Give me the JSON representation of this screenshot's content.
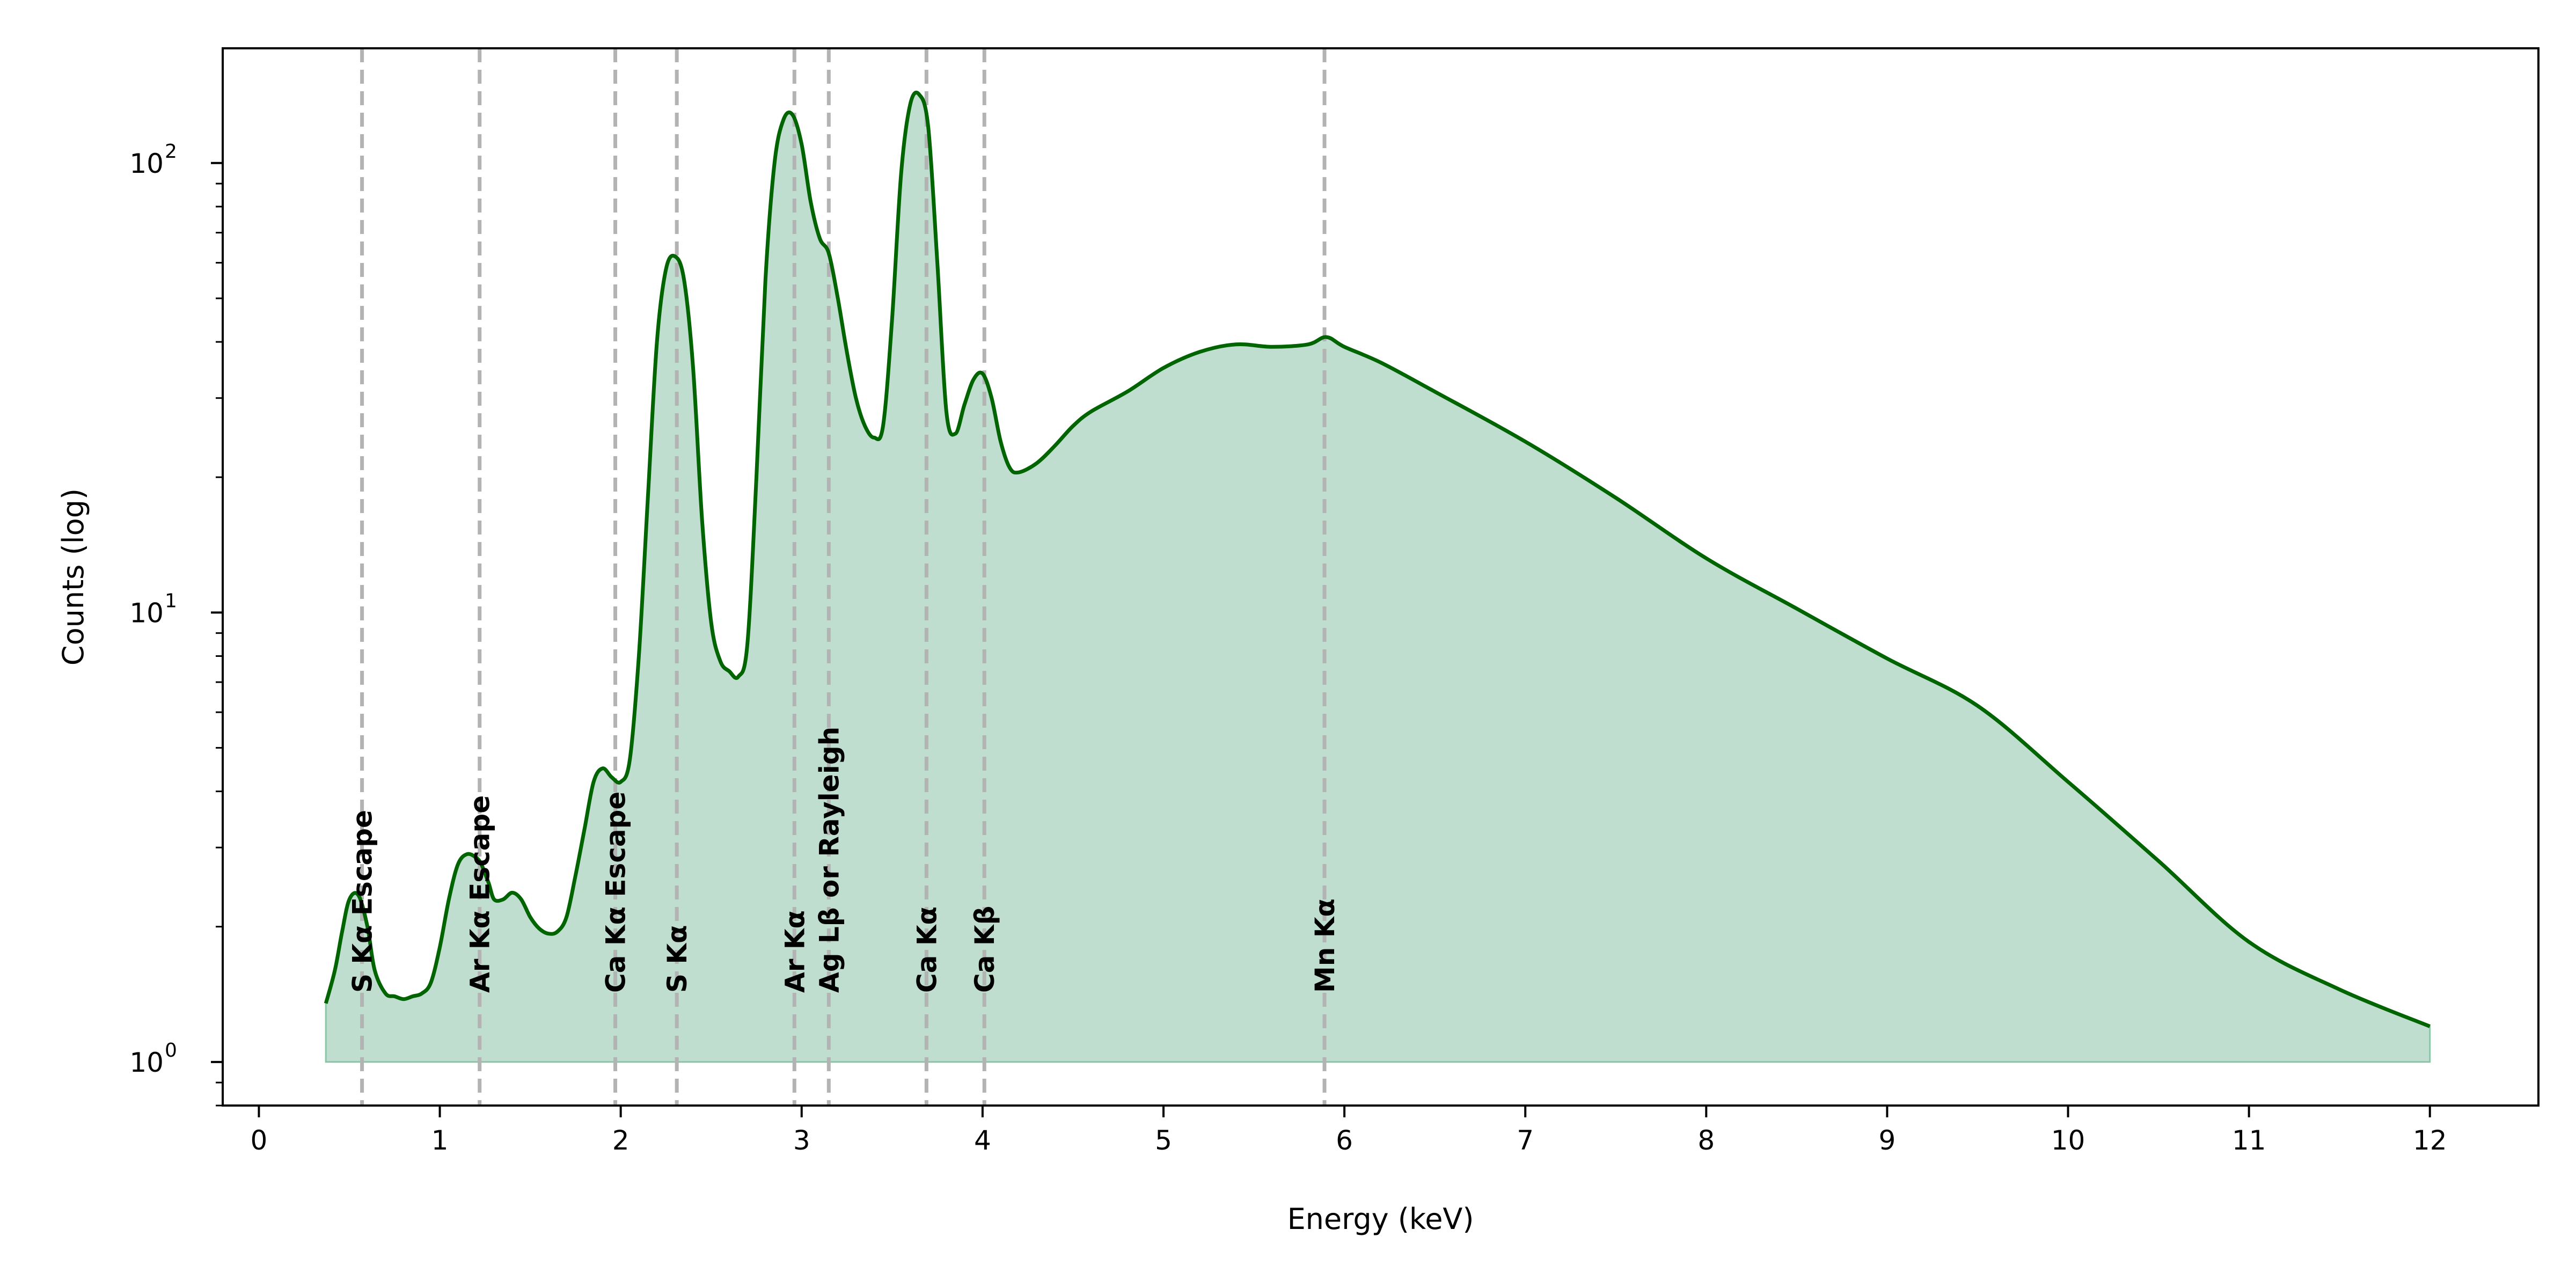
{
  "chart_data": {
    "type": "area",
    "title": "",
    "xlabel": "Energy (keV)",
    "ylabel": "Counts (log)",
    "xlim": [
      -0.2,
      12.6
    ],
    "ylim": [
      0.8,
      180
    ],
    "yscale": "log",
    "grid": false,
    "colors": {
      "line": "#006400",
      "fill": "#bfded0",
      "fill_edge": "#8cc4a8",
      "marker": "#b3b3b3"
    },
    "x_ticks": [
      {
        "value": 0,
        "label": "0"
      },
      {
        "value": 1,
        "label": "1"
      },
      {
        "value": 2,
        "label": "2"
      },
      {
        "value": 3,
        "label": "3"
      },
      {
        "value": 4,
        "label": "4"
      },
      {
        "value": 5,
        "label": "5"
      },
      {
        "value": 6,
        "label": "6"
      },
      {
        "value": 7,
        "label": "7"
      },
      {
        "value": 8,
        "label": "8"
      },
      {
        "value": 9,
        "label": "9"
      },
      {
        "value": 10,
        "label": "10"
      },
      {
        "value": 11,
        "label": "11"
      },
      {
        "value": 12,
        "label": "12"
      }
    ],
    "y_ticks": [
      {
        "value": 1,
        "base": "10",
        "exp": "0"
      },
      {
        "value": 10,
        "base": "10",
        "exp": "1"
      },
      {
        "value": 100,
        "base": "10",
        "exp": "2"
      }
    ],
    "series": [
      {
        "x": [
          0.37,
          0.42,
          0.46,
          0.5,
          0.55,
          0.6,
          0.64,
          0.7,
          0.75,
          0.8,
          0.85,
          0.9,
          0.95,
          1.0,
          1.05,
          1.1,
          1.15,
          1.2,
          1.23,
          1.27,
          1.3,
          1.35,
          1.4,
          1.45,
          1.5,
          1.55,
          1.6,
          1.65,
          1.7,
          1.75,
          1.8,
          1.85,
          1.9,
          1.95,
          2.0,
          2.05,
          2.1,
          2.15,
          2.2,
          2.25,
          2.3,
          2.35,
          2.4,
          2.45,
          2.5,
          2.55,
          2.6,
          2.65,
          2.7,
          2.75,
          2.8,
          2.85,
          2.9,
          2.95,
          3.0,
          3.05,
          3.1,
          3.15,
          3.2,
          3.25,
          3.3,
          3.35,
          3.4,
          3.45,
          3.5,
          3.55,
          3.6,
          3.65,
          3.7,
          3.75,
          3.8,
          3.85,
          3.9,
          3.95,
          4.0,
          4.05,
          4.1,
          4.15,
          4.2,
          4.3,
          4.4,
          4.5,
          4.6,
          4.8,
          5.0,
          5.2,
          5.4,
          5.6,
          5.8,
          5.9,
          6.0,
          6.2,
          6.5,
          7.0,
          7.5,
          8.0,
          8.5,
          9.0,
          9.5,
          10.0,
          10.5,
          11.0,
          11.5,
          12.0
        ],
        "y": [
          1.35,
          1.6,
          1.95,
          2.3,
          2.35,
          2.0,
          1.6,
          1.42,
          1.4,
          1.38,
          1.4,
          1.42,
          1.5,
          1.8,
          2.3,
          2.75,
          2.9,
          2.85,
          2.75,
          2.5,
          2.3,
          2.3,
          2.38,
          2.3,
          2.1,
          1.98,
          1.93,
          1.95,
          2.1,
          2.6,
          3.3,
          4.2,
          4.5,
          4.3,
          4.2,
          4.7,
          8.0,
          18.0,
          40.0,
          58.0,
          62.0,
          55.0,
          35.0,
          16.0,
          9.5,
          7.8,
          7.4,
          7.2,
          8.5,
          20.0,
          55.0,
          100.0,
          125.0,
          128.0,
          110.0,
          82.0,
          68.0,
          63.0,
          50.0,
          38.0,
          30.0,
          26.0,
          24.5,
          26.0,
          45.0,
          95.0,
          135.0,
          142.0,
          120.0,
          60.0,
          28.0,
          25.0,
          29.0,
          33.0,
          34.0,
          30.0,
          24.0,
          21.0,
          20.5,
          21.5,
          23.5,
          26.0,
          28.0,
          31.0,
          35.0,
          38.0,
          39.5,
          39.0,
          39.5,
          41.0,
          39.0,
          36.0,
          31.0,
          24.0,
          18.0,
          13.2,
          10.2,
          7.9,
          6.2,
          4.2,
          2.8,
          1.85,
          1.45,
          1.2
        ]
      }
    ],
    "baseline": 1,
    "annotations": [
      {
        "x": 0.57,
        "label": "S Kα Escape"
      },
      {
        "x": 1.22,
        "label": "Ar Kα Escape"
      },
      {
        "x": 1.97,
        "label": "Ca Kα Escape"
      },
      {
        "x": 2.31,
        "label": "S Kα"
      },
      {
        "x": 2.96,
        "label": "Ar Kα"
      },
      {
        "x": 3.15,
        "label": "Ag Lβ or Rayleigh"
      },
      {
        "x": 3.69,
        "label": "Ca Kα"
      },
      {
        "x": 4.01,
        "label": "Ca Kβ"
      },
      {
        "x": 5.89,
        "label": "Mn Kα"
      }
    ]
  }
}
